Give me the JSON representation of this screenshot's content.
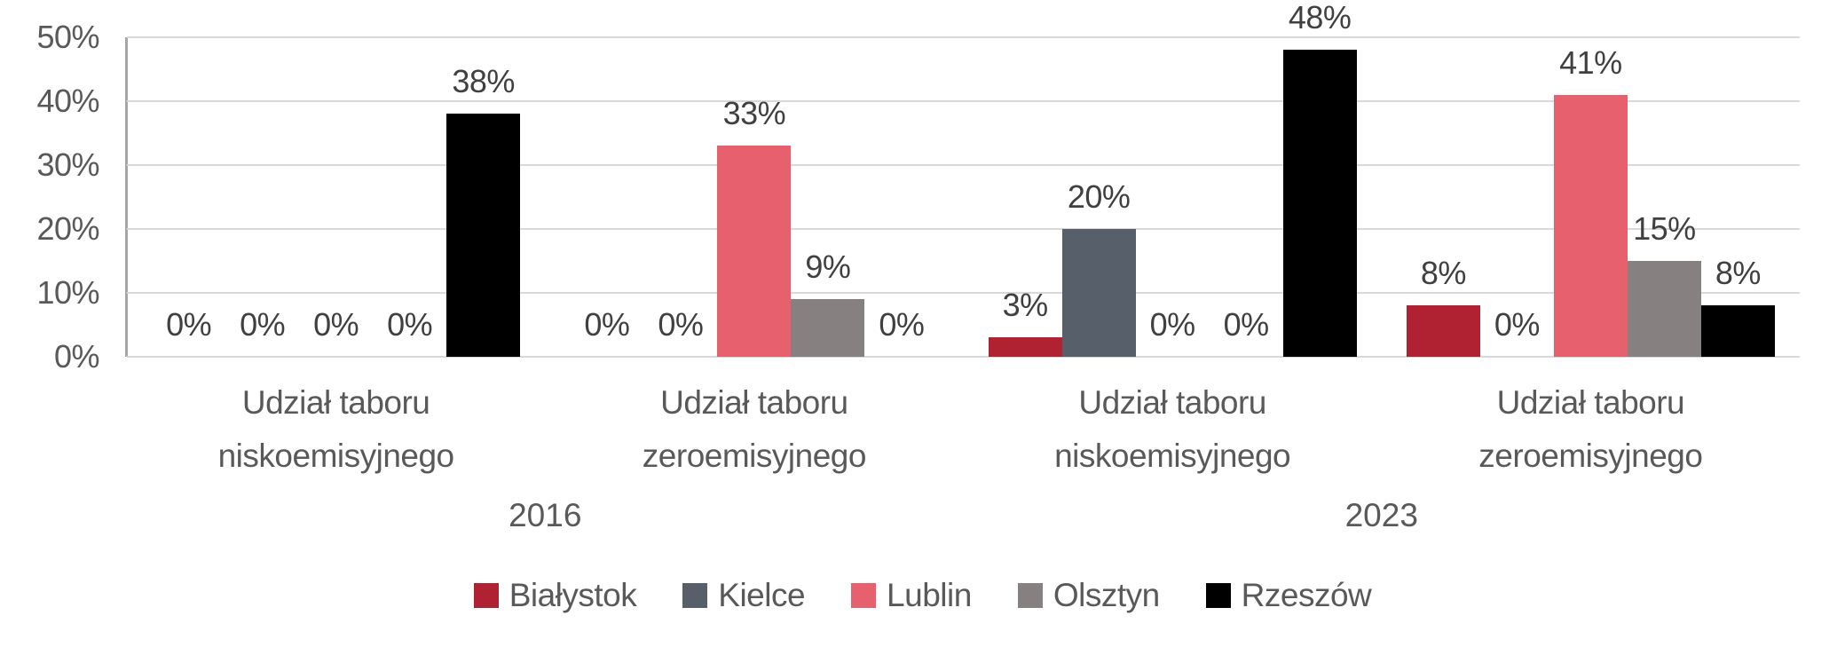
{
  "chart_data": {
    "type": "bar",
    "title": "",
    "xlabel": "",
    "ylabel": "",
    "ylim": [
      0,
      50
    ],
    "ytick_step": 10,
    "yticks": [
      "0%",
      "10%",
      "20%",
      "30%",
      "40%",
      "50%"
    ],
    "grid": true,
    "legend_position": "bottom",
    "categories": [
      {
        "line1": "Udział taboru",
        "line2": "niskoemisyjnego",
        "group": "2016"
      },
      {
        "line1": "Udział taboru",
        "line2": "zeroemisyjnego",
        "group": "2016"
      },
      {
        "line1": "Udział taboru",
        "line2": "niskoemisyjnego",
        "group": "2023"
      },
      {
        "line1": "Udział taboru",
        "line2": "zeroemisyjnego",
        "group": "2023"
      }
    ],
    "category_groups": [
      {
        "label": "2016",
        "from": 0,
        "to": 1
      },
      {
        "label": "2023",
        "from": 2,
        "to": 3
      }
    ],
    "series": [
      {
        "name": "Białystok",
        "color": "#B02132",
        "values": [
          0,
          0,
          3,
          8
        ]
      },
      {
        "name": "Kielce",
        "color": "#57606A",
        "values": [
          0,
          0,
          20,
          0
        ]
      },
      {
        "name": "Lublin",
        "color": "#E6606E",
        "values": [
          0,
          33,
          0,
          41
        ]
      },
      {
        "name": "Olsztyn",
        "color": "#868080",
        "values": [
          0,
          9,
          0,
          15
        ]
      },
      {
        "name": "Rzeszów",
        "color": "#000000",
        "values": [
          38,
          0,
          48,
          8
        ]
      }
    ],
    "data_label_suffix": "%"
  },
  "colors": {
    "gridline": "#D9D9D9",
    "axis_line": "#A6A6A6",
    "tick_text": "#595959",
    "data_label_text": "#404040",
    "background": "#FFFFFF"
  }
}
